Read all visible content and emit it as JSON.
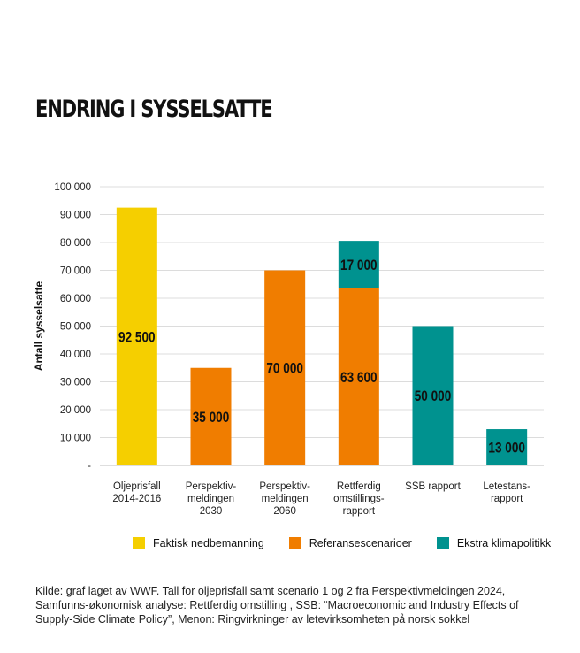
{
  "title": "ENDRING I SYSSELSATTE",
  "source": "Kilde: graf laget av WWF. Tall for oljeprisfall samt scenario 1 og 2 fra Perspektivmeldingen 2024, Samfunns-økonomisk analyse: Rettferdig omstilling , SSB: “Macroeconomic and Industry Effects of Supply-Side Climate Policy”, Menon: Ringvirkninger av letevirksomheten på norsk sokkel",
  "legend": [
    {
      "label": "Faktisk nedbemanning",
      "color": "#f5cf00"
    },
    {
      "label": "Referansescenarioer",
      "color": "#f07d00"
    },
    {
      "label": "Ekstra klimapolitikk",
      "color": "#00928f"
    }
  ],
  "chart_data": {
    "type": "bar",
    "ylabel": "Antall sysselsatte",
    "ylim": [
      0,
      100000
    ],
    "yticks": [
      {
        "value": 0,
        "label": "-"
      },
      {
        "value": 10000,
        "label": "10 000"
      },
      {
        "value": 20000,
        "label": "20 000"
      },
      {
        "value": 30000,
        "label": "30 000"
      },
      {
        "value": 40000,
        "label": "40 000"
      },
      {
        "value": 50000,
        "label": "50 000"
      },
      {
        "value": 60000,
        "label": "60 000"
      },
      {
        "value": 70000,
        "label": "70 000"
      },
      {
        "value": 80000,
        "label": "80 000"
      },
      {
        "value": 90000,
        "label": "90 000"
      },
      {
        "value": 100000,
        "label": "100 000"
      }
    ],
    "grid": true,
    "legend_position": "bottom",
    "categories": [
      [
        "Oljeprisfall",
        "2014-2016"
      ],
      [
        "Perspektiv-",
        "meldingen",
        "2030"
      ],
      [
        "Perspektiv-",
        "meldingen",
        "2060"
      ],
      [
        "Rettferdig",
        "omstillings-",
        "rapport"
      ],
      [
        "SSB rapport"
      ],
      [
        "Letestans-",
        "rapport"
      ]
    ],
    "bars": [
      [
        {
          "series": "Faktisk nedbemanning",
          "value": 92500,
          "label": "92 500"
        }
      ],
      [
        {
          "series": "Referansescenarioer",
          "value": 35000,
          "label": "35 000"
        }
      ],
      [
        {
          "series": "Referansescenarioer",
          "value": 70000,
          "label": "70 000"
        }
      ],
      [
        {
          "series": "Referansescenarioer",
          "value": 63600,
          "label": "63 600"
        },
        {
          "series": "Ekstra klimapolitikk",
          "value": 17000,
          "label": "17 000"
        }
      ],
      [
        {
          "series": "Ekstra klimapolitikk",
          "value": 50000,
          "label": "50 000"
        }
      ],
      [
        {
          "series": "Ekstra klimapolitikk",
          "value": 13000,
          "label": "13 000"
        }
      ]
    ]
  }
}
